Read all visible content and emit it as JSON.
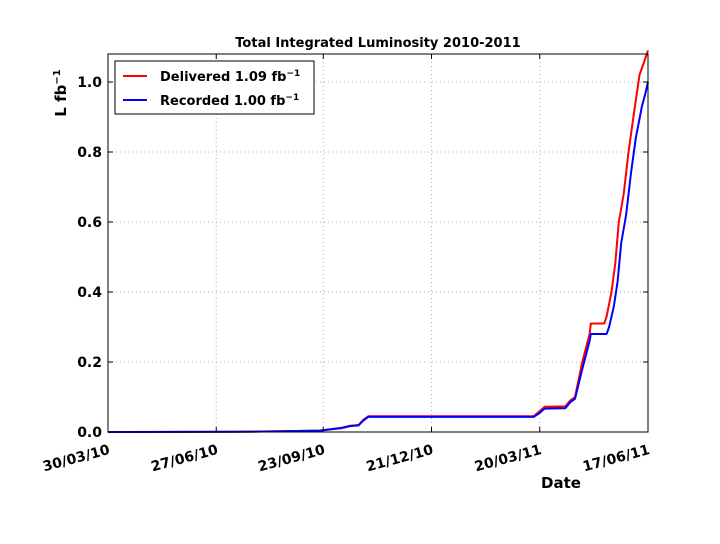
{
  "chart_data": {
    "type": "line",
    "title": "Total Integrated Luminosity 2010-2011",
    "xlabel": "Date",
    "ylabel": "L fb",
    "ylabel_sup": "−1",
    "xlim": [
      "2010-03-30",
      "2011-06-17"
    ],
    "ylim": [
      0.0,
      1.08
    ],
    "x_ticks": [
      {
        "date": "2010-03-30",
        "label": "30/03/10"
      },
      {
        "date": "2010-06-27",
        "label": "27/06/10"
      },
      {
        "date": "2010-09-23",
        "label": "23/09/10"
      },
      {
        "date": "2010-12-21",
        "label": "21/12/10"
      },
      {
        "date": "2011-03-20",
        "label": "20/03/11"
      },
      {
        "date": "2011-06-17",
        "label": "17/06/11"
      }
    ],
    "y_ticks": [
      0.0,
      0.2,
      0.4,
      0.6,
      0.8,
      1.0
    ],
    "y_tick_labels": [
      "0.0",
      "0.2",
      "0.4",
      "0.6",
      "0.8",
      "1.0"
    ],
    "grid": true,
    "legend_position": "top-left",
    "series": [
      {
        "name": "Delivered 1.09 fb",
        "name_sup": "−1",
        "color": "#ff0000",
        "points": [
          [
            "2010-03-30",
            0.0
          ],
          [
            "2010-07-15",
            0.0005
          ],
          [
            "2010-08-20",
            0.002
          ],
          [
            "2010-09-20",
            0.004
          ],
          [
            "2010-10-08",
            0.012
          ],
          [
            "2010-10-15",
            0.018
          ],
          [
            "2010-10-22",
            0.02
          ],
          [
            "2010-10-26",
            0.035
          ],
          [
            "2010-10-30",
            0.045
          ],
          [
            "2011-03-15",
            0.045
          ],
          [
            "2011-03-20",
            0.06
          ],
          [
            "2011-03-24",
            0.072
          ],
          [
            "2011-04-10",
            0.073
          ],
          [
            "2011-04-14",
            0.09
          ],
          [
            "2011-04-18",
            0.1
          ],
          [
            "2011-04-24",
            0.2
          ],
          [
            "2011-04-30",
            0.28
          ],
          [
            "2011-05-01",
            0.31
          ],
          [
            "2011-05-12",
            0.31
          ],
          [
            "2011-05-14",
            0.33
          ],
          [
            "2011-05-18",
            0.4
          ],
          [
            "2011-05-21",
            0.48
          ],
          [
            "2011-05-24",
            0.6
          ],
          [
            "2011-05-28",
            0.68
          ],
          [
            "2011-06-01",
            0.8
          ],
          [
            "2011-06-05",
            0.9
          ],
          [
            "2011-06-10",
            1.02
          ],
          [
            "2011-06-14",
            1.06
          ],
          [
            "2011-06-17",
            1.09
          ]
        ]
      },
      {
        "name": "Recorded 1.00 fb",
        "name_sup": "−1",
        "color": "#0000ff",
        "points": [
          [
            "2010-03-30",
            0.0
          ],
          [
            "2010-07-15",
            0.0005
          ],
          [
            "2010-08-20",
            0.002
          ],
          [
            "2010-09-20",
            0.004
          ],
          [
            "2010-10-08",
            0.011
          ],
          [
            "2010-10-15",
            0.017
          ],
          [
            "2010-10-22",
            0.019
          ],
          [
            "2010-10-26",
            0.033
          ],
          [
            "2010-10-30",
            0.043
          ],
          [
            "2011-03-15",
            0.043
          ],
          [
            "2011-03-20",
            0.055
          ],
          [
            "2011-03-24",
            0.067
          ],
          [
            "2011-04-10",
            0.068
          ],
          [
            "2011-04-14",
            0.085
          ],
          [
            "2011-04-18",
            0.095
          ],
          [
            "2011-04-24",
            0.18
          ],
          [
            "2011-04-30",
            0.26
          ],
          [
            "2011-05-01",
            0.28
          ],
          [
            "2011-05-14",
            0.28
          ],
          [
            "2011-05-16",
            0.3
          ],
          [
            "2011-05-20",
            0.36
          ],
          [
            "2011-05-23",
            0.43
          ],
          [
            "2011-05-26",
            0.54
          ],
          [
            "2011-05-30",
            0.62
          ],
          [
            "2011-06-03",
            0.74
          ],
          [
            "2011-06-07",
            0.84
          ],
          [
            "2011-06-12",
            0.93
          ],
          [
            "2011-06-15",
            0.97
          ],
          [
            "2011-06-17",
            1.0
          ]
        ]
      }
    ]
  }
}
